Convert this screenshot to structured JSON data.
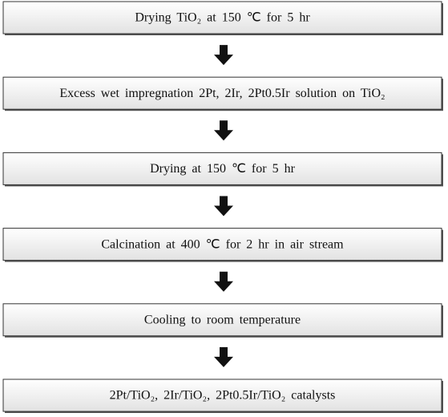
{
  "nodes": [
    {
      "label": "Drying TiO₂ at 150 ℃ for 5 hr"
    },
    {
      "label": "Excess wet impregnation 2Pt, 2Ir, 2Pt0.5Ir solution on TiO₂"
    },
    {
      "label": "Drying at 150 ℃ for 5 hr"
    },
    {
      "label": "Calcination at 400 ℃ for 2 hr in air stream"
    },
    {
      "label": "Cooling to room temperature"
    },
    {
      "label": "2Pt/TiO₂, 2Ir/TiO₂, 2Pt0.5Ir/TiO₂ catalysts"
    }
  ]
}
